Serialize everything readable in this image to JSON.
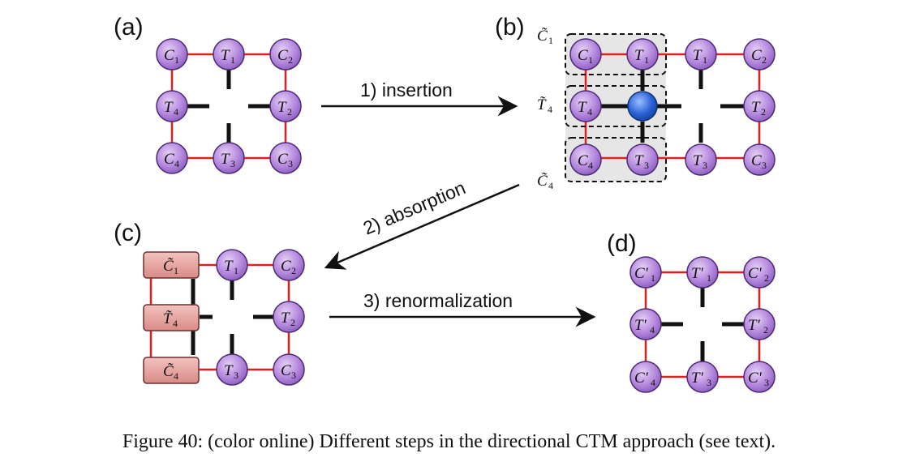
{
  "panels": {
    "a": {
      "label": "(a)"
    },
    "b": {
      "label": "(b)"
    },
    "c": {
      "label": "(c)"
    },
    "d": {
      "label": "(d)"
    }
  },
  "steps": {
    "insertion": "1) insertion",
    "absorption": "2) absorption",
    "renormalization": "3) renormalization"
  },
  "symbols": {
    "C": "C",
    "T": "T",
    "Ct": "C̃",
    "Tt": "T̃",
    "Cp": "C'",
    "Tp": "T'"
  },
  "indices": {
    "one": "1",
    "two": "2",
    "three": "3",
    "four": "4"
  },
  "colors": {
    "node_fill": "#b98ee0",
    "node_stroke": "#4d2a72",
    "bond_red": "#e02020",
    "bond_black": "#111111",
    "box_fill": "#e8a3a0",
    "box_stroke": "#6a3030",
    "site_blue": "#2a62d8",
    "shade": "#e6e6e6"
  },
  "caption": "Figure 40: (color online) Different steps in the directional CTM approach (see text)."
}
